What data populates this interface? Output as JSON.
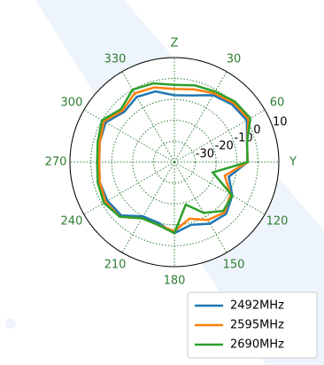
{
  "chart_data": {
    "type": "polar",
    "x": [
      0,
      15,
      30,
      45,
      60,
      75,
      90,
      105,
      120,
      135,
      150,
      165,
      180,
      195,
      210,
      225,
      240,
      255,
      270,
      285,
      300,
      315,
      330,
      345
    ],
    "series": [
      {
        "name": "2492MHz",
        "color": "#1f77b4",
        "values": [
          -8,
          -7,
          -3,
          -1,
          0,
          -4,
          -5,
          -13,
          -8,
          -5,
          -6,
          -9,
          -6,
          -10,
          -10,
          -4,
          -3,
          -3,
          -4,
          -3,
          -2,
          -6,
          -4,
          -5
        ]
      },
      {
        "name": "2595MHz",
        "color": "#ff7f0e",
        "values": [
          -5,
          -4,
          -2,
          0,
          1,
          -4,
          -5,
          -15,
          -9,
          -6,
          -8,
          -12,
          -7,
          -9,
          -9,
          -3,
          -2,
          -3,
          -4,
          -3,
          -1,
          -5,
          -2,
          -3
        ]
      },
      {
        "name": "2690MHz",
        "color": "#2ca02c",
        "values": [
          -3,
          -2,
          -1,
          1,
          2,
          -4,
          -5,
          -21,
          -8,
          -7,
          -12,
          -19,
          -6,
          -9,
          -9,
          -3,
          -1,
          -2,
          -3,
          -2,
          0,
          -4,
          0,
          -1
        ]
      }
    ],
    "xticks": [
      {
        "value": 0,
        "label": "Z"
      },
      30,
      60,
      {
        "value": 90,
        "label": "Y"
      },
      120,
      150,
      180,
      210,
      240,
      270,
      300,
      330
    ],
    "ylim": [
      -40,
      10
    ],
    "yticks": [
      -30,
      -20,
      -10,
      0,
      10
    ],
    "grid": true,
    "legend": "lower right"
  }
}
